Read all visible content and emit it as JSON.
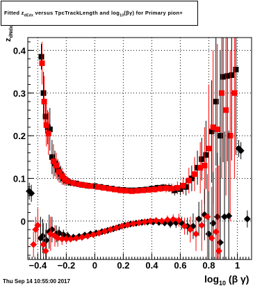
{
  "title": {
    "prefix": "Fitted  z",
    "sub1": "dEdx",
    "middle": " versus TpcTrackLength and log",
    "sub2": "10",
    "suffix": "(βγ) for Primary pion+"
  },
  "ylabel": {
    "main": "z",
    "sub": "dNdx"
  },
  "xlabel": {
    "main": "log",
    "sub": "10",
    "suffix": " (β γ)"
  },
  "datestamp": "Thu Sep 14 10:55:00 2017",
  "chart_data": {
    "type": "scatter",
    "xlim": [
      -0.47,
      1.1
    ],
    "ylim": [
      -0.09,
      0.43
    ],
    "xticks": [
      -0.4,
      -0.2,
      0,
      0.2,
      0.4,
      0.6,
      0.8,
      1
    ],
    "xtick_labels": [
      "−0.4",
      "−0.2",
      "0",
      "0.2",
      "0.4",
      "0.6",
      "0.8",
      "1"
    ],
    "yticks": [
      0,
      0.1,
      0.2,
      0.3,
      0.4
    ],
    "ytick_labels": [
      "0",
      "0.1",
      "0.2",
      "0.3",
      "0.4"
    ],
    "grid": true,
    "colors": {
      "black_series": "#000000",
      "red_series": "#ff0000"
    },
    "series": [
      {
        "marker": "square",
        "color": "#000000",
        "points": [
          {
            "x": -0.375,
            "y": 0.385,
            "e": 0.03
          },
          {
            "x": -0.36,
            "y": 0.3,
            "e": 0.05
          },
          {
            "x": -0.345,
            "y": 0.245,
            "e": 0.04
          },
          {
            "x": -0.33,
            "y": 0.22,
            "e": 0.04
          },
          {
            "x": -0.315,
            "y": 0.215,
            "e": 0.05
          },
          {
            "x": -0.3,
            "y": 0.15,
            "e": 0.04
          },
          {
            "x": -0.28,
            "y": 0.135,
            "e": 0.03
          },
          {
            "x": -0.26,
            "y": 0.12,
            "e": 0.025
          },
          {
            "x": -0.24,
            "y": 0.11,
            "e": 0.02
          },
          {
            "x": -0.22,
            "y": 0.1,
            "e": 0.015
          },
          {
            "x": -0.2,
            "y": 0.095,
            "e": 0.01
          },
          {
            "x": -0.17,
            "y": 0.09,
            "e": 0.008
          },
          {
            "x": -0.13,
            "y": 0.088,
            "e": 0.006
          },
          {
            "x": -0.09,
            "y": 0.085,
            "e": 0.005
          },
          {
            "x": -0.05,
            "y": 0.083,
            "e": 0.004
          },
          {
            "x": 0.0,
            "y": 0.082,
            "e": 0.004
          },
          {
            "x": 0.04,
            "y": 0.08,
            "e": 0.004
          },
          {
            "x": 0.08,
            "y": 0.078,
            "e": 0.004
          },
          {
            "x": 0.12,
            "y": 0.076,
            "e": 0.004
          },
          {
            "x": 0.16,
            "y": 0.074,
            "e": 0.004
          },
          {
            "x": 0.2,
            "y": 0.073,
            "e": 0.004
          },
          {
            "x": 0.24,
            "y": 0.072,
            "e": 0.004
          },
          {
            "x": 0.28,
            "y": 0.072,
            "e": 0.004
          },
          {
            "x": 0.32,
            "y": 0.073,
            "e": 0.005
          },
          {
            "x": 0.36,
            "y": 0.074,
            "e": 0.005
          },
          {
            "x": 0.4,
            "y": 0.076,
            "e": 0.006
          },
          {
            "x": 0.44,
            "y": 0.078,
            "e": 0.007
          },
          {
            "x": 0.48,
            "y": 0.079,
            "e": 0.008
          },
          {
            "x": 0.52,
            "y": 0.078,
            "e": 0.01
          },
          {
            "x": 0.56,
            "y": 0.072,
            "e": 0.012
          },
          {
            "x": 0.6,
            "y": 0.075,
            "e": 0.015
          },
          {
            "x": 0.64,
            "y": 0.08,
            "e": 0.02
          },
          {
            "x": 0.68,
            "y": 0.1,
            "e": 0.03
          },
          {
            "x": 0.72,
            "y": 0.125,
            "e": 0.04
          },
          {
            "x": 0.75,
            "y": 0.145,
            "e": 0.05
          },
          {
            "x": 0.78,
            "y": 0.155,
            "e": 0.08
          },
          {
            "x": 0.82,
            "y": 0.21,
            "e": 0.12
          },
          {
            "x": 0.85,
            "y": 0.28,
            "e": 0.15
          },
          {
            "x": 0.88,
            "y": 0.2,
            "e": 0.2
          },
          {
            "x": 0.9,
            "y": 0.338,
            "e": 0.2
          },
          {
            "x": 0.93,
            "y": 0.34,
            "e": 0.2
          },
          {
            "x": 0.96,
            "y": 0.342,
            "e": 0.2
          },
          {
            "x": 0.99,
            "y": 0.355,
            "e": 0.2
          }
        ]
      },
      {
        "marker": "square",
        "color": "#ff0000",
        "points": [
          {
            "x": -0.37,
            "y": 0.37,
            "e": 0.05
          },
          {
            "x": -0.355,
            "y": 0.28,
            "e": 0.06
          },
          {
            "x": -0.34,
            "y": 0.225,
            "e": 0.05
          },
          {
            "x": -0.325,
            "y": 0.205,
            "e": 0.05
          },
          {
            "x": -0.29,
            "y": 0.14,
            "e": 0.04
          },
          {
            "x": -0.27,
            "y": 0.13,
            "e": 0.03
          },
          {
            "x": -0.25,
            "y": 0.115,
            "e": 0.025
          },
          {
            "x": -0.23,
            "y": 0.105,
            "e": 0.02
          },
          {
            "x": -0.21,
            "y": 0.098,
            "e": 0.015
          },
          {
            "x": -0.19,
            "y": 0.093,
            "e": 0.01
          },
          {
            "x": -0.15,
            "y": 0.089,
            "e": 0.008
          },
          {
            "x": -0.11,
            "y": 0.086,
            "e": 0.006
          },
          {
            "x": -0.07,
            "y": 0.084,
            "e": 0.005
          },
          {
            "x": -0.03,
            "y": 0.082,
            "e": 0.004
          },
          {
            "x": 0.02,
            "y": 0.08,
            "e": 0.004
          },
          {
            "x": 0.06,
            "y": 0.078,
            "e": 0.004
          },
          {
            "x": 0.1,
            "y": 0.076,
            "e": 0.004
          },
          {
            "x": 0.14,
            "y": 0.074,
            "e": 0.004
          },
          {
            "x": 0.18,
            "y": 0.072,
            "e": 0.004
          },
          {
            "x": 0.22,
            "y": 0.071,
            "e": 0.004
          },
          {
            "x": 0.26,
            "y": 0.07,
            "e": 0.004
          },
          {
            "x": 0.3,
            "y": 0.071,
            "e": 0.005
          },
          {
            "x": 0.34,
            "y": 0.072,
            "e": 0.005
          },
          {
            "x": 0.38,
            "y": 0.073,
            "e": 0.006
          },
          {
            "x": 0.42,
            "y": 0.074,
            "e": 0.007
          },
          {
            "x": 0.46,
            "y": 0.076,
            "e": 0.008
          },
          {
            "x": 0.5,
            "y": 0.077,
            "e": 0.01
          },
          {
            "x": 0.54,
            "y": 0.076,
            "e": 0.012
          },
          {
            "x": 0.58,
            "y": 0.078,
            "e": 0.015
          },
          {
            "x": 0.62,
            "y": 0.083,
            "e": 0.02
          },
          {
            "x": 0.66,
            "y": 0.095,
            "e": 0.03
          },
          {
            "x": 0.7,
            "y": 0.11,
            "e": 0.04
          },
          {
            "x": 0.74,
            "y": 0.125,
            "e": 0.06
          },
          {
            "x": 0.77,
            "y": 0.13,
            "e": 0.09
          },
          {
            "x": 0.8,
            "y": 0.17,
            "e": 0.15
          },
          {
            "x": 0.83,
            "y": 0.22,
            "e": 0.18
          },
          {
            "x": 0.86,
            "y": 0.215,
            "e": 0.2
          },
          {
            "x": 0.89,
            "y": 0.3,
            "e": 0.2
          },
          {
            "x": 0.92,
            "y": 0.26,
            "e": 0.2
          },
          {
            "x": 0.95,
            "y": 0.2,
            "e": 0.2
          },
          {
            "x": 0.98,
            "y": 0.3,
            "e": 0.2
          }
        ]
      },
      {
        "marker": "diamond",
        "color": "#000000",
        "points": [
          {
            "x": -0.46,
            "y": 0.07,
            "e": 0.02
          },
          {
            "x": -0.445,
            "y": 0.065,
            "e": 0.02
          },
          {
            "x": -0.38,
            "y": -0.04,
            "e": 0.05
          },
          {
            "x": -0.365,
            "y": -0.035,
            "e": 0.04
          },
          {
            "x": -0.34,
            "y": -0.045,
            "e": 0.04
          },
          {
            "x": -0.32,
            "y": -0.025,
            "e": 0.04
          },
          {
            "x": -0.3,
            "y": -0.02,
            "e": 0.03
          },
          {
            "x": -0.27,
            "y": -0.03,
            "e": 0.02
          },
          {
            "x": -0.25,
            "y": -0.028,
            "e": 0.015
          },
          {
            "x": -0.22,
            "y": -0.032,
            "e": 0.012
          },
          {
            "x": -0.19,
            "y": -0.035,
            "e": 0.01
          },
          {
            "x": -0.15,
            "y": -0.038,
            "e": 0.008
          },
          {
            "x": -0.11,
            "y": -0.036,
            "e": 0.006
          },
          {
            "x": -0.07,
            "y": -0.033,
            "e": 0.005
          },
          {
            "x": -0.03,
            "y": -0.03,
            "e": 0.005
          },
          {
            "x": 0.01,
            "y": -0.028,
            "e": 0.004
          },
          {
            "x": 0.05,
            "y": -0.025,
            "e": 0.004
          },
          {
            "x": 0.09,
            "y": -0.022,
            "e": 0.004
          },
          {
            "x": 0.13,
            "y": -0.018,
            "e": 0.004
          },
          {
            "x": 0.17,
            "y": -0.014,
            "e": 0.004
          },
          {
            "x": 0.21,
            "y": -0.01,
            "e": 0.004
          },
          {
            "x": 0.25,
            "y": -0.007,
            "e": 0.004
          },
          {
            "x": 0.29,
            "y": -0.005,
            "e": 0.004
          },
          {
            "x": 0.33,
            "y": -0.003,
            "e": 0.005
          },
          {
            "x": 0.37,
            "y": -0.002,
            "e": 0.005
          },
          {
            "x": 0.41,
            "y": -0.002,
            "e": 0.006
          },
          {
            "x": 0.45,
            "y": -0.003,
            "e": 0.007
          },
          {
            "x": 0.49,
            "y": -0.004,
            "e": 0.008
          },
          {
            "x": 0.53,
            "y": -0.006,
            "e": 0.01
          },
          {
            "x": 0.57,
            "y": -0.004,
            "e": 0.012
          },
          {
            "x": 0.61,
            "y": -0.005,
            "e": 0.015
          },
          {
            "x": 0.65,
            "y": -0.012,
            "e": 0.02
          },
          {
            "x": 0.69,
            "y": -0.012,
            "e": 0.03
          },
          {
            "x": 0.73,
            "y": 0.005,
            "e": 0.04
          },
          {
            "x": 0.77,
            "y": 0.015,
            "e": 0.06
          },
          {
            "x": 0.8,
            "y": -0.03,
            "e": 0.1
          },
          {
            "x": 0.83,
            "y": -0.005,
            "e": 0.12
          },
          {
            "x": 0.86,
            "y": 0.01,
            "e": 0.15
          },
          {
            "x": 0.88,
            "y": -0.05,
            "e": 0.2
          },
          {
            "x": 0.91,
            "y": 0.01,
            "e": 0.2
          },
          {
            "x": 0.94,
            "y": 0.012,
            "e": 0.2
          },
          {
            "x": 1.01,
            "y": 0.17,
            "e": 0.02
          },
          {
            "x": 1.025,
            "y": 0.165,
            "e": 0.02
          },
          {
            "x": 1.07,
            "y": 0.005,
            "e": 0.02
          }
        ]
      },
      {
        "marker": "diamond",
        "color": "#ff0000",
        "points": [
          {
            "x": -0.43,
            "y": -0.055,
            "e": 0.03
          },
          {
            "x": -0.415,
            "y": -0.02,
            "e": 0.03
          },
          {
            "x": -0.4,
            "y": -0.01,
            "e": 0.04
          },
          {
            "x": -0.36,
            "y": -0.055,
            "e": 0.05
          },
          {
            "x": -0.345,
            "y": -0.07,
            "e": 0.05
          },
          {
            "x": -0.31,
            "y": -0.03,
            "e": 0.04
          },
          {
            "x": -0.28,
            "y": -0.035,
            "e": 0.025
          },
          {
            "x": -0.26,
            "y": -0.04,
            "e": 0.02
          },
          {
            "x": -0.23,
            "y": -0.042,
            "e": 0.014
          },
          {
            "x": -0.2,
            "y": -0.042,
            "e": 0.01
          },
          {
            "x": -0.17,
            "y": -0.042,
            "e": 0.008
          },
          {
            "x": -0.13,
            "y": -0.04,
            "e": 0.006
          },
          {
            "x": -0.09,
            "y": -0.038,
            "e": 0.005
          },
          {
            "x": -0.05,
            "y": -0.035,
            "e": 0.005
          },
          {
            "x": -0.01,
            "y": -0.032,
            "e": 0.004
          },
          {
            "x": 0.03,
            "y": -0.028,
            "e": 0.004
          },
          {
            "x": 0.07,
            "y": -0.024,
            "e": 0.004
          },
          {
            "x": 0.11,
            "y": -0.02,
            "e": 0.004
          },
          {
            "x": 0.15,
            "y": -0.016,
            "e": 0.004
          },
          {
            "x": 0.19,
            "y": -0.012,
            "e": 0.004
          },
          {
            "x": 0.23,
            "y": -0.009,
            "e": 0.004
          },
          {
            "x": 0.27,
            "y": -0.006,
            "e": 0.004
          },
          {
            "x": 0.31,
            "y": -0.004,
            "e": 0.005
          },
          {
            "x": 0.35,
            "y": -0.002,
            "e": 0.005
          },
          {
            "x": 0.39,
            "y": 0.0,
            "e": 0.006
          },
          {
            "x": 0.43,
            "y": 0.001,
            "e": 0.007
          },
          {
            "x": 0.47,
            "y": 0.0,
            "e": 0.008
          },
          {
            "x": 0.51,
            "y": 0.003,
            "e": 0.01
          },
          {
            "x": 0.55,
            "y": 0.004,
            "e": 0.012
          },
          {
            "x": 0.59,
            "y": 0.002,
            "e": 0.015
          },
          {
            "x": 0.63,
            "y": -0.012,
            "e": 0.02
          },
          {
            "x": 0.67,
            "y": -0.02,
            "e": 0.03
          },
          {
            "x": 0.71,
            "y": -0.03,
            "e": 0.04
          },
          {
            "x": 0.75,
            "y": -0.01,
            "e": 0.06
          },
          {
            "x": 0.79,
            "y": 0.01,
            "e": 0.1
          },
          {
            "x": 0.82,
            "y": -0.04,
            "e": 0.12
          },
          {
            "x": 0.85,
            "y": -0.025,
            "e": 0.15
          },
          {
            "x": 0.87,
            "y": -0.07,
            "e": 0.2
          }
        ]
      }
    ]
  }
}
